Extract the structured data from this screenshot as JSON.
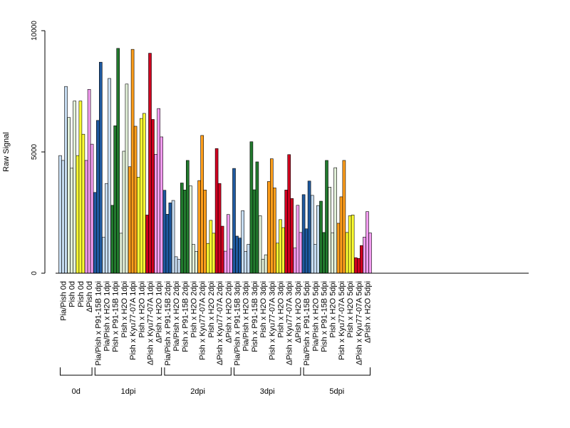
{
  "chart_data": {
    "type": "bar",
    "title": "",
    "xlabel": "",
    "ylabel": "Raw Signal",
    "ylim": [
      0,
      10000
    ],
    "yticks": [
      0,
      5000,
      10000
    ],
    "grid": false,
    "legend": "none",
    "colors": {
      "pia": "#c6dcf1",
      "pish": "#e2f0d8",
      "pish_dark": "#f8fbf5",
      "yellow": "#ffff33",
      "delta": "#f39cf0",
      "p91": "#1f5aa0",
      "pish_p91": "#227a2e",
      "kyu": "#ff9e1b",
      "dpish_kyu": "#d00020"
    },
    "categories": [
      {
        "label": "Pia/Pish 0d",
        "color": "#c6dcf1",
        "values": [
          4850,
          4650,
          7700
        ]
      },
      {
        "label": "Pish 0d",
        "color": "#e2f0d8",
        "values": [
          6420,
          4330,
          7100
        ]
      },
      {
        "label": "Pish 0d",
        "color": "#ffff33",
        "values": [
          4850,
          7100,
          5730
        ]
      },
      {
        "label": "ΔPish 0d",
        "color": "#f39cf0",
        "values": [
          4650,
          7580,
          5320
        ]
      },
      {
        "label": "Pia/Pish x P91-15B 1dpi",
        "color": "#1f5aa0",
        "values": [
          3330,
          6300,
          8700
        ]
      },
      {
        "label": "Pia/Pish x H2O 1dpi",
        "color": "#c6dcf1",
        "values": [
          1480,
          3700,
          8030
        ]
      },
      {
        "label": "Pish x P91-15B 1dpi",
        "color": "#227a2e",
        "values": [
          2800,
          6080,
          9270
        ]
      },
      {
        "label": "Pish x H2O 1dpi",
        "color": "#e2f0d8",
        "values": [
          1650,
          5030,
          7800
        ]
      },
      {
        "label": "Pish x Kyu77-07A 1dpi",
        "color": "#ff9e1b",
        "values": [
          4390,
          9230,
          6060
        ]
      },
      {
        "label": "Pish x H2O 1dpi",
        "color": "#ffff33",
        "values": [
          3960,
          6380,
          6590
        ]
      },
      {
        "label": "ΔPish x Kyu77-07A 1dpi",
        "color": "#d00020",
        "values": [
          2400,
          9070,
          6340
        ]
      },
      {
        "label": "ΔPish x H2O 1dpi",
        "color": "#f39cf0",
        "values": [
          4900,
          6790,
          5620
        ]
      },
      {
        "label": "Pia/Pish x P91-15B 2dpi",
        "color": "#1f5aa0",
        "values": [
          3420,
          2430,
          2900
        ]
      },
      {
        "label": "Pia/Pish x H2O 2dpi",
        "color": "#c6dcf1",
        "values": [
          3000,
          680,
          580
        ]
      },
      {
        "label": "Pish x P91-15B 2dpi",
        "color": "#227a2e",
        "values": [
          3720,
          3430,
          4650
        ]
      },
      {
        "label": "Pish x H2O 2dpi",
        "color": "#e2f0d8",
        "values": [
          3600,
          1190,
          900
        ]
      },
      {
        "label": "Pish x Kyu77-07A 2dpi",
        "color": "#ff9e1b",
        "values": [
          3820,
          5680,
          3430
        ]
      },
      {
        "label": "Pish x H2O 2dpi",
        "color": "#ffff33",
        "values": [
          1230,
          2180,
          1650
        ]
      },
      {
        "label": "ΔPish x Kyu77-07A 2dpi",
        "color": "#d00020",
        "values": [
          5140,
          3700,
          1940
        ]
      },
      {
        "label": "ΔPish x H2O 2dpi",
        "color": "#f39cf0",
        "values": [
          910,
          2420,
          1000
        ]
      },
      {
        "label": "Pia/Pish x P91-15B 3dpi",
        "color": "#1f5aa0",
        "values": [
          4320,
          1530,
          1450
        ]
      },
      {
        "label": "Pia/Pish x H2O 3dpi",
        "color": "#c6dcf1",
        "values": [
          2580,
          900,
          1190
        ]
      },
      {
        "label": "Pish x P91-15B 3dpi",
        "color": "#227a2e",
        "values": [
          5420,
          3440,
          4590
        ]
      },
      {
        "label": "Pish x H2O 3dpi",
        "color": "#e2f0d8",
        "values": [
          2370,
          580,
          760
        ]
      },
      {
        "label": "Pish x Kyu77-07A 3dpi",
        "color": "#ff9e1b",
        "values": [
          3780,
          4720,
          3520
        ]
      },
      {
        "label": "Pish x H2O 3dpi",
        "color": "#ffff33",
        "values": [
          1240,
          2210,
          1880
        ]
      },
      {
        "label": "ΔPish x Kyu77-07A 3dpi",
        "color": "#d00020",
        "values": [
          3430,
          4890,
          3080
        ]
      },
      {
        "label": "ΔPish x H2O 3dpi",
        "color": "#f39cf0",
        "values": [
          1040,
          2800,
          1680
        ]
      },
      {
        "label": "Pia/Pish x P91-15B 5dpi",
        "color": "#1f5aa0",
        "values": [
          3240,
          1830,
          3800
        ]
      },
      {
        "label": "Pia/Pish x H2O 5dpi",
        "color": "#c6dcf1",
        "values": [
          3210,
          1190,
          2790
        ]
      },
      {
        "label": "Pish x P91-15B 5dpi",
        "color": "#227a2e",
        "values": [
          2970,
          1680,
          4650
        ]
      },
      {
        "label": "Pish x H2O 5dpi",
        "color": "#e2f0d8",
        "values": [
          3550,
          1670,
          4350
        ]
      },
      {
        "label": "Pish x Kyu77-07A 5dpi",
        "color": "#ff9e1b",
        "values": [
          2060,
          3150,
          4650
        ]
      },
      {
        "label": "Pish x H2O 5dpi",
        "color": "#ffff33",
        "values": [
          1680,
          2370,
          2400
        ]
      },
      {
        "label": "ΔPish x Kyu77-07A 5dpi",
        "color": "#d00020",
        "values": [
          640,
          610,
          1140
        ]
      },
      {
        "label": "ΔPish x H2O 5dpi",
        "color": "#f39cf0",
        "values": [
          1490,
          2540,
          1660
        ]
      }
    ],
    "groups": [
      {
        "label": "0d",
        "start": 0,
        "end": 3
      },
      {
        "label": "1dpi",
        "start": 4,
        "end": 11
      },
      {
        "label": "2dpi",
        "start": 12,
        "end": 19
      },
      {
        "label": "3dpi",
        "start": 20,
        "end": 27
      },
      {
        "label": "5dpi",
        "start": 28,
        "end": 35
      }
    ]
  }
}
